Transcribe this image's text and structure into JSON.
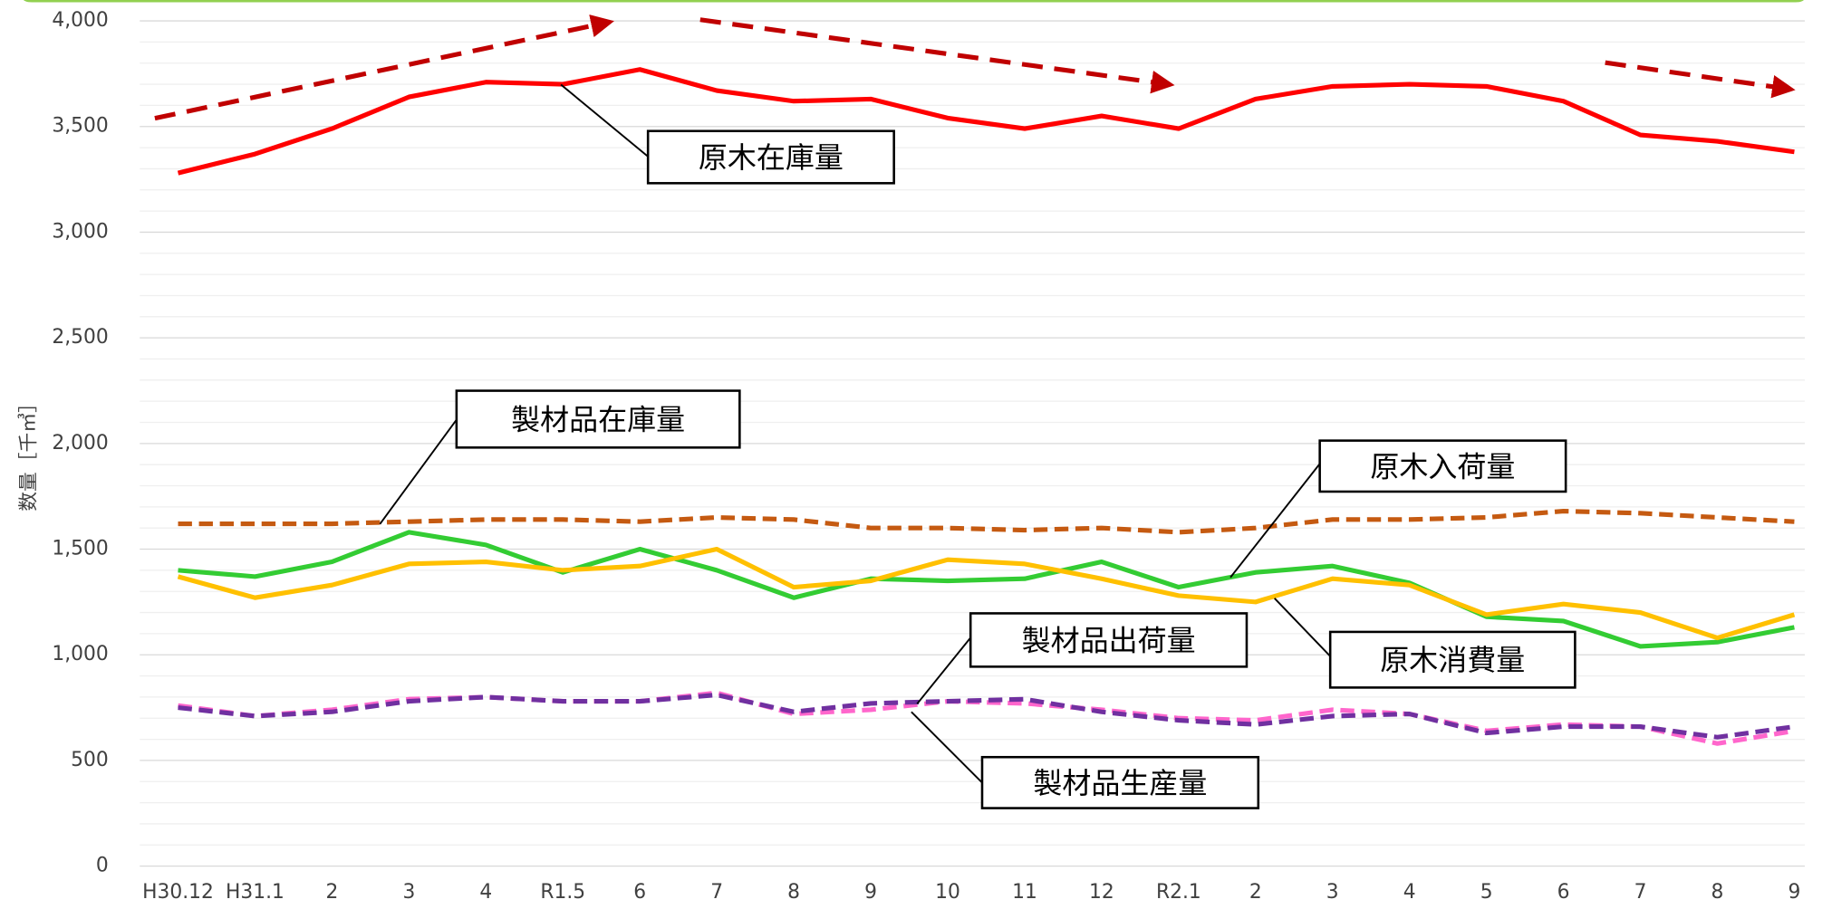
{
  "chart_data": {
    "type": "line",
    "y_axis_label": "数量［千㎥］",
    "categories": [
      "H30.12",
      "H31.1",
      "2",
      "3",
      "4",
      "R1.5",
      "6",
      "7",
      "8",
      "9",
      "10",
      "11",
      "12",
      "R2.1",
      "2",
      "3",
      "4",
      "5",
      "6",
      "7",
      "8",
      "9"
    ],
    "series": [
      {
        "name": "原木在庫量",
        "color": "#ff0000",
        "dashed": false,
        "values": [
          3280,
          3370,
          3490,
          3640,
          3710,
          3700,
          3770,
          3670,
          3620,
          3630,
          3540,
          3490,
          3550,
          3490,
          3630,
          3690,
          3700,
          3690,
          3620,
          3460,
          3430,
          3380
        ]
      },
      {
        "name": "製材品在庫量",
        "color": "#c55a11",
        "dashed": true,
        "values": [
          1620,
          1620,
          1620,
          1630,
          1640,
          1640,
          1630,
          1650,
          1640,
          1600,
          1600,
          1590,
          1600,
          1580,
          1600,
          1640,
          1640,
          1650,
          1680,
          1670,
          1650,
          1630
        ]
      },
      {
        "name": "原木入荷量",
        "color": "#33cc33",
        "dashed": false,
        "values": [
          1400,
          1370,
          1440,
          1580,
          1520,
          1390,
          1500,
          1400,
          1270,
          1360,
          1350,
          1360,
          1440,
          1320,
          1390,
          1420,
          1340,
          1180,
          1160,
          1040,
          1060,
          1130
        ]
      },
      {
        "name": "原木消費量",
        "color": "#ffc000",
        "dashed": false,
        "values": [
          1370,
          1270,
          1330,
          1430,
          1440,
          1400,
          1420,
          1500,
          1320,
          1350,
          1450,
          1430,
          1360,
          1280,
          1250,
          1360,
          1330,
          1190,
          1240,
          1200,
          1080,
          1190
        ]
      },
      {
        "name": "製材品出荷量",
        "color": "#7030a0",
        "dashed": true,
        "values": [
          750,
          710,
          730,
          780,
          800,
          780,
          780,
          810,
          730,
          770,
          780,
          790,
          730,
          690,
          670,
          710,
          720,
          630,
          660,
          660,
          610,
          660
        ]
      },
      {
        "name": "製材品生産量",
        "color": "#ff66cc",
        "dashed": true,
        "values": [
          760,
          710,
          740,
          790,
          800,
          780,
          780,
          820,
          720,
          740,
          780,
          770,
          740,
          700,
          690,
          740,
          720,
          640,
          670,
          660,
          580,
          640
        ]
      }
    ],
    "ylim": [
      0,
      4000
    ],
    "yticks": [
      0,
      500,
      {
        "value": 1000,
        "label": "1,000"
      },
      {
        "value": 1500,
        "label": "1,500"
      },
      {
        "value": 2000,
        "label": "2,000"
      },
      {
        "value": 2500,
        "label": "2,500"
      },
      {
        "value": 3000,
        "label": "3,000"
      },
      {
        "value": 3500,
        "label": "3,500"
      },
      {
        "value": 4000,
        "label": "4,000"
      }
    ],
    "grid": true
  }
}
